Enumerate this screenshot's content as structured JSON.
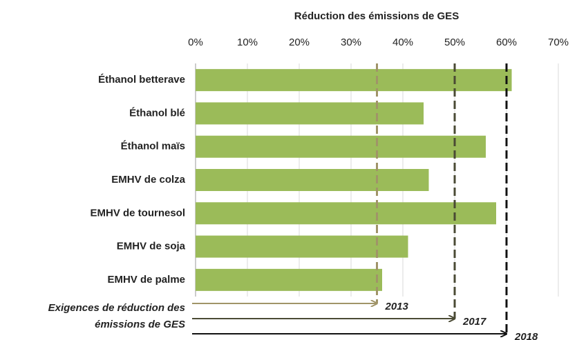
{
  "chart_data": {
    "type": "bar",
    "orientation": "horizontal",
    "title": "Réduction des émissions de GES",
    "categories": [
      "Éthanol betterave",
      "Éthanol blé",
      "Éthanol maïs",
      "EMHV de colza",
      "EMHV de tournesol",
      "EMHV de soja",
      "EMHV de palme"
    ],
    "values": [
      61,
      44,
      56,
      45,
      58,
      41,
      36
    ],
    "color": "#9bbb59",
    "xlim": [
      0,
      70
    ],
    "xticks": [
      {
        "value": 0,
        "label": "0%"
      },
      {
        "value": 10,
        "label": "10%"
      },
      {
        "value": 20,
        "label": "20%"
      },
      {
        "value": 30,
        "label": "30%"
      },
      {
        "value": 40,
        "label": "40%"
      },
      {
        "value": 50,
        "label": "50%"
      },
      {
        "value": 60,
        "label": "60%"
      },
      {
        "value": 70,
        "label": "70%"
      }
    ],
    "grid": true,
    "annotation": [
      "Exigences de réduction des",
      "émissions de GES"
    ],
    "thresholds": [
      {
        "name": "2013",
        "value": 35,
        "color": "#a09468"
      },
      {
        "name": "2017",
        "value": 50,
        "color": "#4a4a34"
      },
      {
        "name": "2018",
        "value": 60,
        "color": "#111111"
      }
    ]
  }
}
